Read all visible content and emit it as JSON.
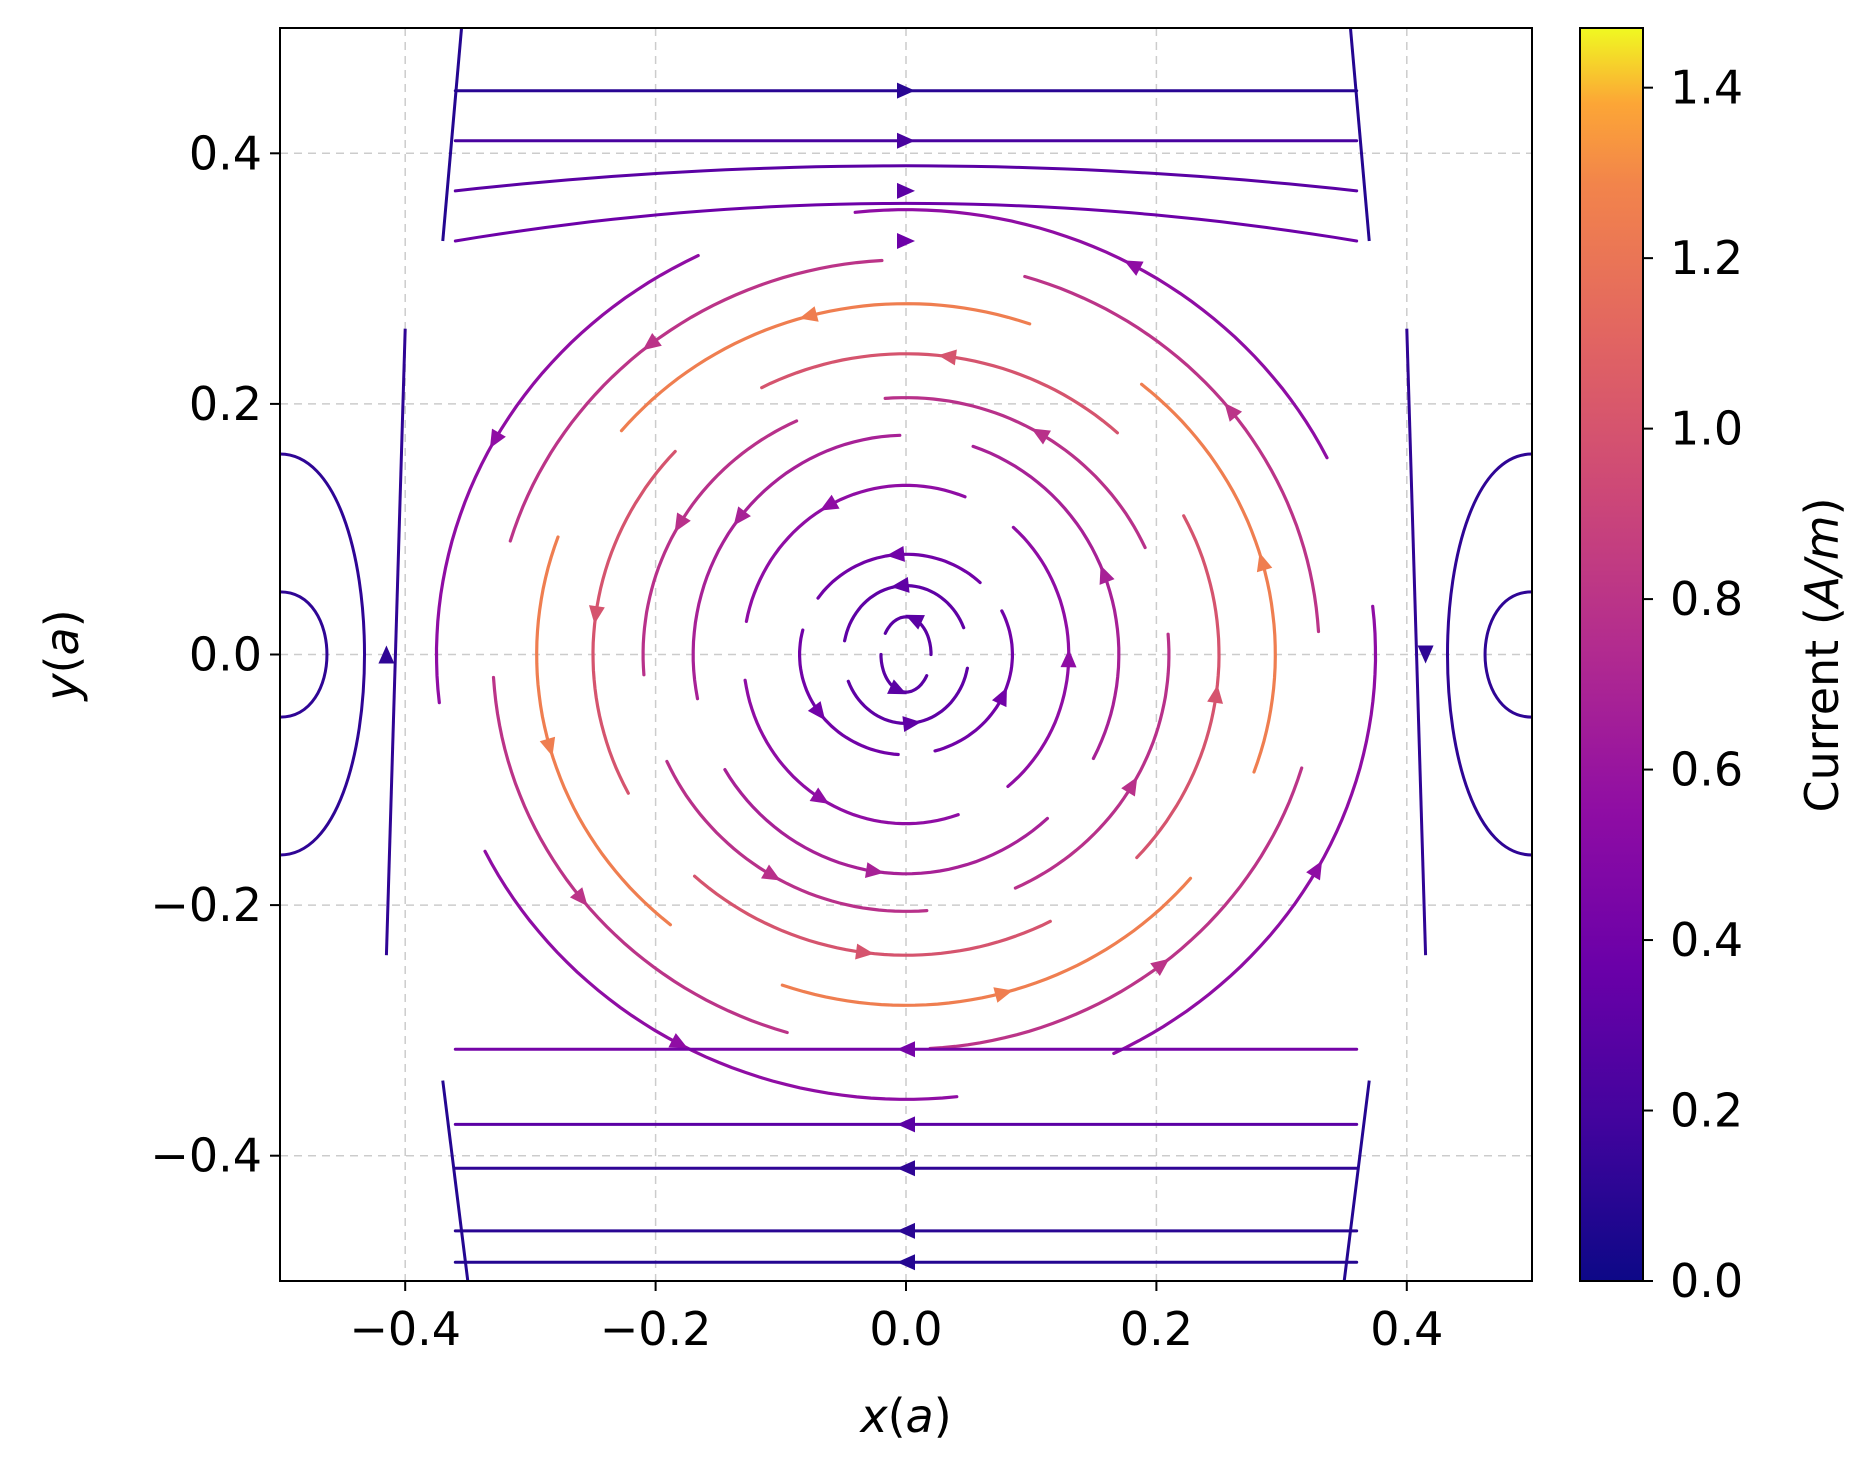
{
  "chart_data": {
    "type": "streamline",
    "title": "",
    "field_description": "Single vortex with counter-clockwise circulation centered at origin; opposite circulation near x = ±0.5 at y = 0; saddle regions near x = ±0.4",
    "circulation": "counter-clockwise",
    "xlim": [
      -0.5,
      0.5
    ],
    "ylim": [
      -0.5,
      0.5
    ],
    "grid": true,
    "grid_style": "dashed",
    "x_axis": {
      "label_var": "x",
      "label_unit": "a",
      "ticks": [
        -0.4,
        -0.2,
        0.0,
        0.2,
        0.4
      ],
      "tick_labels": [
        "−0.4",
        "−0.2",
        "0.0",
        "0.2",
        "0.4"
      ]
    },
    "y_axis": {
      "label_var": "y",
      "label_unit": "a",
      "ticks": [
        -0.4,
        -0.2,
        0.0,
        0.2,
        0.4
      ],
      "tick_labels": [
        "−0.4",
        "−0.2",
        "0.0",
        "0.2",
        "0.4"
      ]
    },
    "colorbar": {
      "label_text": "Current",
      "label_unit": "A/m",
      "colormap": "plasma",
      "range": [
        0.0,
        1.47
      ],
      "ticks": [
        0.0,
        0.2,
        0.4,
        0.6,
        0.8,
        1.0,
        1.2,
        1.4
      ],
      "tick_labels": [
        "0.0",
        "0.2",
        "0.4",
        "0.6",
        "0.8",
        "1.0",
        "1.2",
        "1.4"
      ]
    },
    "vortex_rings": [
      {
        "radius_x": 0.02,
        "radius_y": 0.03,
        "current": 0.3
      },
      {
        "radius_x": 0.05,
        "radius_y": 0.055,
        "current": 0.32
      },
      {
        "radius_x": 0.085,
        "radius_y": 0.08,
        "current": 0.4
      },
      {
        "radius_x": 0.13,
        "radius_y": 0.135,
        "current": 0.55
      },
      {
        "radius_x": 0.17,
        "radius_y": 0.175,
        "current": 0.68
      },
      {
        "radius_x": 0.21,
        "radius_y": 0.205,
        "current": 0.78
      },
      {
        "radius_x": 0.25,
        "radius_y": 0.24,
        "current": 1.0
      },
      {
        "radius_x": 0.295,
        "radius_y": 0.28,
        "current": 1.25
      },
      {
        "radius_x": 0.33,
        "radius_y": 0.315,
        "current": 0.8
      },
      {
        "radius_x": 0.375,
        "radius_y": 0.355,
        "current": 0.55
      }
    ]
  }
}
